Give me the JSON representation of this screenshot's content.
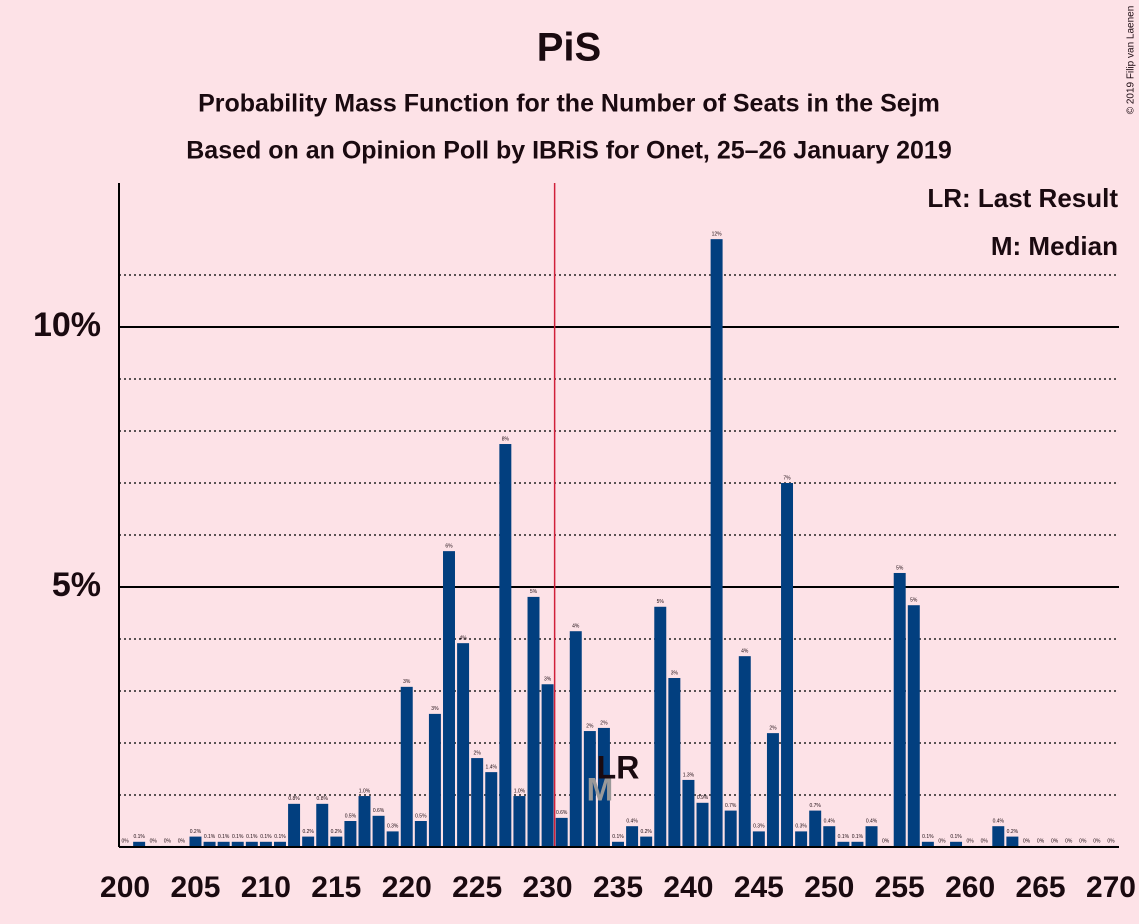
{
  "chart_data": {
    "type": "bar",
    "title": "PiS",
    "subtitle": "Probability Mass Function for the Number of Seats in the Sejm",
    "subtitle2": "Based on an Opinion Poll by IBRiS for Onet, 25–26 January 2019",
    "copyright": "© 2019 Filip van Laenen",
    "legend": [
      "LR: Last Result",
      "M: Median"
    ],
    "color": "#023f7f",
    "x": [
      200,
      201,
      202,
      203,
      204,
      205,
      206,
      207,
      208,
      209,
      210,
      211,
      212,
      213,
      214,
      215,
      216,
      217,
      218,
      219,
      220,
      221,
      222,
      223,
      224,
      225,
      226,
      227,
      228,
      229,
      230,
      231,
      232,
      233,
      234,
      235,
      236,
      237,
      238,
      239,
      240,
      241,
      242,
      243,
      244,
      245,
      246,
      247,
      248,
      249,
      250,
      251,
      252,
      253,
      254,
      255,
      256,
      257,
      258,
      259,
      260,
      261,
      262,
      263,
      264,
      265,
      266,
      267,
      268,
      269,
      270
    ],
    "values": [
      0.02,
      0.1,
      0.02,
      0.02,
      0.02,
      0.2,
      0.1,
      0.1,
      0.1,
      0.1,
      0.1,
      0.1,
      0.83,
      0.2,
      0.83,
      0.2,
      0.5,
      0.98,
      0.6,
      0.3,
      3.08,
      0.5,
      2.56,
      5.69,
      3.92,
      1.71,
      1.44,
      7.75,
      0.98,
      4.81,
      3.13,
      0.56,
      4.15,
      2.23,
      2.29,
      0.1,
      0.4,
      0.2,
      4.62,
      3.25,
      1.29,
      0.85,
      11.69,
      0.7,
      3.67,
      0.3,
      2.19,
      7.0,
      0.3,
      0.7,
      0.4,
      0.1,
      0.1,
      0.4,
      0.02,
      5.27,
      4.65,
      0.1,
      0.02,
      0.1,
      0.02,
      0.02,
      0.4,
      0.2,
      0.02,
      0.02,
      0.02,
      0.02,
      0.02,
      0.02,
      0.02
    ],
    "value_labels": [
      "0%",
      "0.1%",
      "0%",
      "0%",
      "0%",
      "0.2%",
      "0.1%",
      "0.1%",
      "0.1%",
      "0.1%",
      "0.1%",
      "0.1%",
      "0.8%",
      "0.2%",
      "0.8%",
      "0.2%",
      "0.5%",
      "1.0%",
      "0.6%",
      "0.3%",
      "3%",
      "0.5%",
      "3%",
      "6%",
      "4%",
      "2%",
      "1.4%",
      "8%",
      "1.0%",
      "5%",
      "3%",
      "0.6%",
      "4%",
      "2%",
      "2%",
      "0.1%",
      "0.4%",
      "0.2%",
      "5%",
      "3%",
      "1.3%",
      "0.9%",
      "12%",
      "0.7%",
      "4%",
      "0.3%",
      "2%",
      "7%",
      "0.3%",
      "0.7%",
      "0.4%",
      "0.1%",
      "0.1%",
      "0.4%",
      "0%",
      "5%",
      "5%",
      "0.1%",
      "0%",
      "0.1%",
      "0%",
      "0%",
      "0.4%",
      "0.2%",
      "0%",
      "0%",
      "0%",
      "0%",
      "0%",
      "0%",
      "0%"
    ],
    "xlim": [
      199.57,
      270.57
    ],
    "xticks": [
      200,
      205,
      210,
      215,
      220,
      225,
      230,
      235,
      240,
      245,
      250,
      255,
      260,
      265,
      270
    ],
    "ylim": [
      0,
      12.77
    ],
    "yticks": [
      {
        "value": 5,
        "label": "5%"
      },
      {
        "value": 10,
        "label": "10%"
      }
    ],
    "minor_yticks": [
      1,
      2,
      3,
      4,
      6,
      7,
      8,
      9,
      11
    ],
    "majority_line": 230.5,
    "annotations": [
      {
        "text": "M",
        "x": 234
      },
      {
        "text": "LR",
        "x": 235
      }
    ]
  }
}
